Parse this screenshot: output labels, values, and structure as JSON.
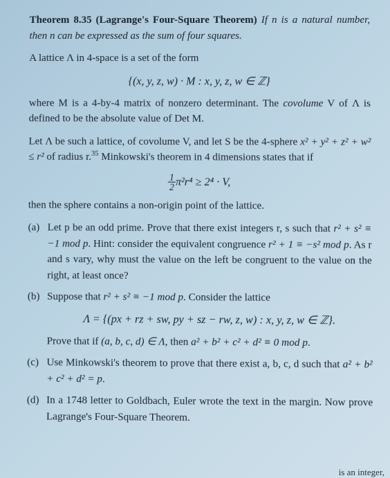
{
  "theorem": {
    "label": "Theorem 8.35 (Lagrange's Four-Square Theorem)",
    "statement_pre": "If n is a natural number, then n can be expressed as the sum of four squares."
  },
  "p1": "A lattice Λ in 4-space is a set of the form",
  "eq1": "{(x, y, z, w) · M : x, y, z, w ∈ ℤ}",
  "p2_pre": "where M is a 4-by-4 matrix of nonzero determinant. The ",
  "p2_covolume": "covolume",
  "p2_post": " V of Λ is defined to be the absolute value of Det M.",
  "p3_pre": "Let Λ be such a lattice, of covolume V, and let S be the 4-sphere ",
  "p3_sphere": "x² + y² + z² + w² ≤ r²",
  "p3_mid": " of radius r.",
  "p3_footnote": "35",
  "p3_post": " Minkowski's theorem in 4 dimensions states that if",
  "eq2_frac_num": "1",
  "eq2_frac_den": "2",
  "eq2_rest": "π²r⁴ ≥ 2⁴ · V,",
  "p4": "then the sphere contains a non-origin point of the lattice.",
  "a": {
    "label": "(a)",
    "pre": "Let p be an odd prime. Prove that there exist integers r, s such that ",
    "math1": "r² + s² ≡ −1 mod p",
    "mid": ". Hint: consider the equivalent congruence ",
    "math2": "r² + 1 ≡ −s² mod p",
    "post": ". As r and s vary, why must the value on the left be congruent to the value on the right, at least once?"
  },
  "b": {
    "label": "(b)",
    "pre": "Suppose that ",
    "math1": "r² + s² ≡ −1 mod p",
    "mid": ". Consider the lattice",
    "eq": "Λ = {(px + rz + sw, py + sz − rw, z, w) : x, y, z, w ∈ ℤ}.",
    "post_pre": "Prove that if ",
    "math2": "(a, b, c, d) ∈ Λ",
    "post_mid": ", then ",
    "math3": "a² + b² + c² + d² ≡ 0 mod p",
    "post_end": "."
  },
  "c": {
    "label": "(c)",
    "pre": "Use Minkowski's theorem to prove that there exist a, b, c, d such that ",
    "math": "a² + b² + c² + d² = p",
    "end": "."
  },
  "d": {
    "label": "(d)",
    "text": "In a 1748 letter to Goldbach, Euler wrote the text in the margin. Now prove Lagrange's Four-Square Theorem."
  },
  "corner": "is an integer,"
}
